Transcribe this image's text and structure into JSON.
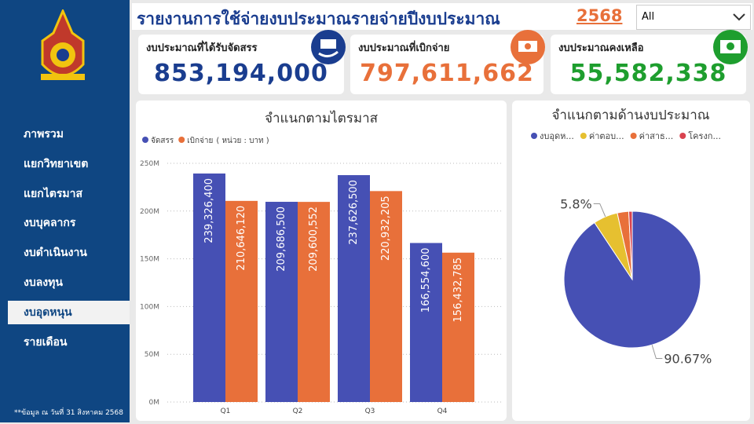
{
  "header": {
    "title": "รายงานการใช้จ่ายงบประมาณรายจ่ายปีงบประมาณ",
    "year": "2568",
    "filter": "All"
  },
  "sidebar": {
    "menu": [
      "ภาพรวม",
      "แยกวิทยาเขต",
      "แยกไตรมาส",
      "งบบุคลากร",
      "งบดำเนินงาน",
      "งบลงทุน",
      "งบอุดหนุน",
      "รายเดือน"
    ],
    "footnote": "**ข้อมูล ณ วันที่ 31 สิงหาคม 2568"
  },
  "cards": [
    {
      "label": "งบประมาณที่ได้รับจัดสรร",
      "value": "853,194,000"
    },
    {
      "label": "งบประมาณที่เบิกจ่าย",
      "value": "797,611,662"
    },
    {
      "label": "งบประมาณคงเหลือ",
      "value": "55,582,338"
    }
  ],
  "bar_chart": {
    "type": "bar",
    "title": "จำแนกตามไตรมาส",
    "unit_note": "( หน่วย : บาท )",
    "categories": [
      "Q1",
      "Q2",
      "Q3",
      "Q4"
    ],
    "series": [
      {
        "name": "จัดสรร",
        "color": "#4650b4",
        "values": [
          239326400,
          209686500,
          237626500,
          166554600
        ],
        "value_labels": [
          "239,326,400",
          "209,686,500",
          "237,626,500",
          "166,554,600"
        ]
      },
      {
        "name": "เบิกจ่าย",
        "color": "#e8703a",
        "values": [
          210646120,
          209600552,
          220932205,
          156432785
        ],
        "value_labels": [
          "210,646,120",
          "209,600,552",
          "220,932,205",
          "156,432,785"
        ]
      }
    ],
    "ylim": [
      0,
      250000000
    ],
    "yticks": [
      {
        "value": 0,
        "label": "0M"
      },
      {
        "value": 50000000,
        "label": "50M"
      },
      {
        "value": 100000000,
        "label": "100M"
      },
      {
        "value": 150000000,
        "label": "150M"
      },
      {
        "value": 200000000,
        "label": "200M"
      },
      {
        "value": 250000000,
        "label": "250M"
      }
    ],
    "grid": true
  },
  "pie_chart": {
    "type": "pie",
    "title": "จำแนกตามด้านงบประมาณ",
    "categories": [
      "งบอุดห...",
      "ค่าตอบ...",
      "ค่าสาธ...",
      "โครงก..."
    ],
    "values": [
      90.67,
      5.8,
      2.7,
      0.83
    ],
    "value_labels": [
      "90.67%",
      "5.8%",
      null,
      null
    ],
    "colors": [
      "#4650b4",
      "#e6c030",
      "#e8703a",
      "#d9434f"
    ]
  }
}
